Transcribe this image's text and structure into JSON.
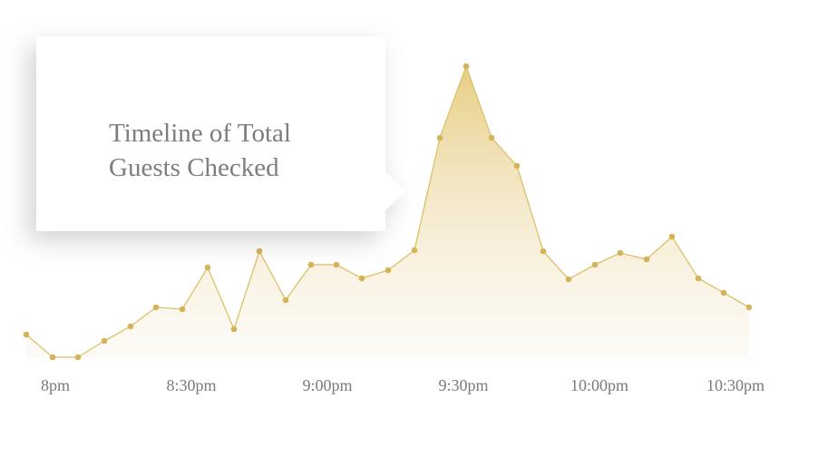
{
  "chart_data": {
    "type": "area",
    "title": "Timeline of Total Guests Checked",
    "x": [
      -6.4,
      -0.6,
      5,
      10.8,
      16.6,
      22.2,
      28,
      33.6,
      39.4,
      45,
      50.8,
      56.4,
      62,
      67.6,
      73.4,
      79.2,
      84.8,
      90.6,
      96.2,
      101.8,
      107.6,
      113.2,
      119,
      124.6,
      130.4,
      136,
      141.8,
      147.4,
      153
    ],
    "values": [
      26,
      1,
      1,
      19,
      35,
      56,
      54,
      100,
      32,
      118,
      64,
      103,
      103,
      88,
      97,
      119,
      243,
      322,
      243,
      212,
      118,
      87,
      103,
      116,
      109,
      134,
      88,
      72,
      56
    ],
    "color": "#dcc068",
    "marker_color": "#d4b45a",
    "xlim": [
      -6.4,
      153
    ],
    "ylim": [
      0,
      330
    ],
    "xticks": [
      {
        "value": 0,
        "label": "8pm"
      },
      {
        "value": 30,
        "label": "8:30pm"
      },
      {
        "value": 60,
        "label": "9:00pm"
      },
      {
        "value": 90,
        "label": "9:30pm"
      },
      {
        "value": 120,
        "label": "10:00pm"
      },
      {
        "value": 150,
        "label": "10:30pm"
      }
    ]
  }
}
